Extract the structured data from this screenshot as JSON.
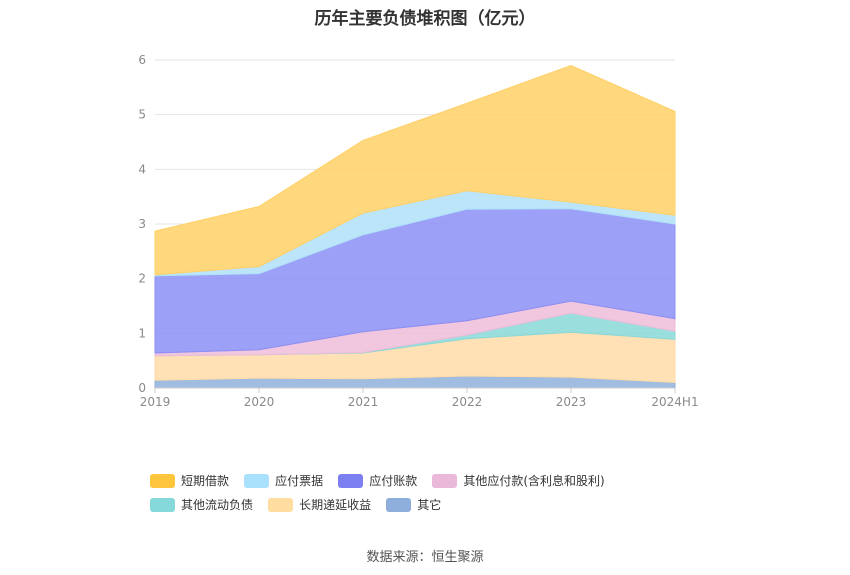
{
  "chart_data": {
    "type": "area",
    "stacked": true,
    "title": "历年主要负债堆积图（亿元）",
    "categories": [
      "2019",
      "2020",
      "2021",
      "2022",
      "2023",
      "2024H1"
    ],
    "ylim": [
      0,
      6
    ],
    "yticks": [
      "0",
      "1",
      "2",
      "3",
      "4",
      "5",
      "6"
    ],
    "grid": true,
    "legend_position": "bottom",
    "series": [
      {
        "name": "其它",
        "color": "#8fb0db",
        "values": [
          0.14,
          0.18,
          0.17,
          0.22,
          0.2,
          0.1
        ]
      },
      {
        "name": "长期递延收益",
        "color": "#ffdca8",
        "values": [
          0.45,
          0.43,
          0.47,
          0.68,
          0.82,
          0.79
        ]
      },
      {
        "name": "其他流动负债",
        "color": "#8ad8d8",
        "values": [
          0.0,
          0.0,
          0.01,
          0.07,
          0.35,
          0.15
        ]
      },
      {
        "name": "其他应付款(含利息和股利)",
        "color": "#eebcd9",
        "values": [
          0.05,
          0.09,
          0.38,
          0.26,
          0.22,
          0.23
        ]
      },
      {
        "name": "应付账款",
        "color": "#8b8ff5",
        "values": [
          1.41,
          1.39,
          1.77,
          2.04,
          1.69,
          1.73
        ]
      },
      {
        "name": "应付票据",
        "color": "#b0e1f8",
        "values": [
          0.02,
          0.13,
          0.4,
          0.34,
          0.12,
          0.16
        ]
      },
      {
        "name": "短期借款",
        "color": "#ffd066",
        "values": [
          0.8,
          1.1,
          1.33,
          1.6,
          2.5,
          1.9
        ]
      }
    ]
  },
  "legend": {
    "items": [
      {
        "label": "短期借款",
        "color": "#ffc53d"
      },
      {
        "label": "应付票据",
        "color": "#a9e0fb"
      },
      {
        "label": "应付账款",
        "color": "#7c7ff0"
      },
      {
        "label": "其他应付款(含利息和股利)",
        "color": "#eab8d8"
      },
      {
        "label": "其他流动负债",
        "color": "#86d9da"
      },
      {
        "label": "长期递延收益",
        "color": "#ffdc9f"
      },
      {
        "label": "其它",
        "color": "#8eaedc"
      }
    ]
  },
  "source_note": "数据来源：恒生聚源"
}
